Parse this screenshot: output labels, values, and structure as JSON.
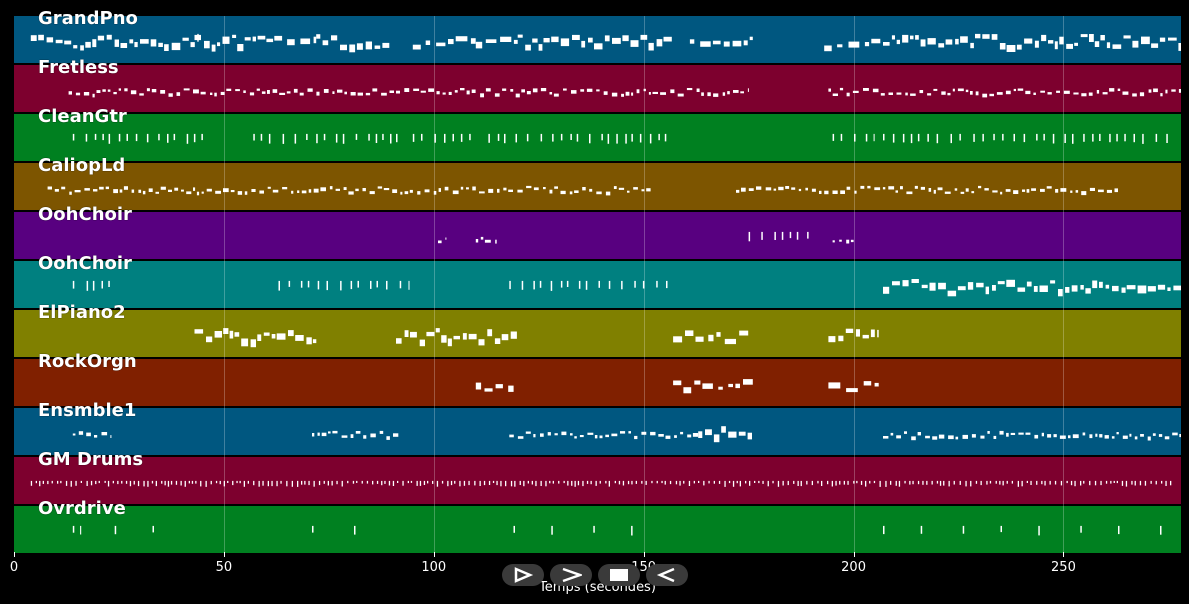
{
  "tracks": [
    {
      "name": "GrandPno",
      "color": "#005780",
      "segments": [
        [
          4,
          44,
          "h"
        ],
        [
          43,
          62,
          "h"
        ],
        [
          62,
          72,
          "m"
        ],
        [
          72,
          90,
          "h"
        ],
        [
          95,
          110,
          "m"
        ],
        [
          110,
          120,
          "m"
        ],
        [
          120,
          157,
          "h"
        ],
        [
          161,
          176,
          "m"
        ],
        [
          193,
          207,
          "m"
        ],
        [
          207,
          278,
          "h"
        ]
      ]
    },
    {
      "name": "Fretless",
      "color": "#7d002e",
      "segments": [
        [
          13,
          175,
          "l"
        ],
        [
          194,
          278,
          "l"
        ]
      ]
    },
    {
      "name": "CleanGtr",
      "color": "#008020",
      "segments": [
        [
          14,
          45,
          "s"
        ],
        [
          57,
          70,
          "s"
        ],
        [
          72,
          92,
          "s"
        ],
        [
          95,
          110,
          "s"
        ],
        [
          113,
          157,
          "s"
        ],
        [
          195,
          205,
          "s"
        ],
        [
          207,
          275,
          "s"
        ]
      ]
    },
    {
      "name": "CaliopLd",
      "color": "#7d5500",
      "segments": [
        [
          8,
          152,
          "l"
        ],
        [
          172,
          263,
          "l"
        ]
      ]
    },
    {
      "name": "OohChoir",
      "color": "#580080",
      "segments": [
        [
          101,
          103,
          "l"
        ],
        [
          110,
          115,
          "l"
        ],
        [
          175,
          190,
          "s"
        ],
        [
          195,
          200,
          "l"
        ]
      ]
    },
    {
      "name": "OohChoir",
      "color": "#008080",
      "segments": [
        [
          14,
          24,
          "s"
        ],
        [
          63,
          94,
          "s"
        ],
        [
          118,
          157,
          "s"
        ],
        [
          207,
          278,
          "h"
        ]
      ]
    },
    {
      "name": "ElPiano2",
      "color": "#808000",
      "segments": [
        [
          43,
          72,
          "h"
        ],
        [
          91,
          120,
          "h"
        ],
        [
          157,
          176,
          "m"
        ],
        [
          194,
          206,
          "h"
        ]
      ]
    },
    {
      "name": "RockOrgn",
      "color": "#802000",
      "segments": [
        [
          110,
          119,
          "m"
        ],
        [
          157,
          176,
          "m"
        ],
        [
          194,
          206,
          "m"
        ]
      ]
    },
    {
      "name": "Ensmble1",
      "color": "#005780",
      "segments": [
        [
          14,
          23,
          "l"
        ],
        [
          71,
          92,
          "l"
        ],
        [
          118,
          163,
          "l"
        ],
        [
          163,
          176,
          "h"
        ],
        [
          207,
          278,
          "l"
        ]
      ]
    },
    {
      "name": "GM Drums",
      "color": "#7d002e",
      "segments": [
        [
          4,
          276,
          "d"
        ]
      ]
    },
    {
      "name": "Ovrdrive",
      "color": "#008020",
      "segments": [
        [
          14,
          16,
          "s"
        ],
        [
          24,
          25,
          "s"
        ],
        [
          33,
          34,
          "s"
        ],
        [
          71,
          72,
          "s"
        ],
        [
          81,
          82,
          "s"
        ],
        [
          119,
          120,
          "s"
        ],
        [
          128,
          129,
          "s"
        ],
        [
          138,
          139,
          "s"
        ],
        [
          147,
          148,
          "s"
        ],
        [
          207,
          208,
          "s"
        ],
        [
          216,
          217,
          "s"
        ],
        [
          226,
          227,
          "s"
        ],
        [
          235,
          236,
          "s"
        ],
        [
          244,
          245,
          "s"
        ],
        [
          254,
          255,
          "s"
        ],
        [
          263,
          264,
          "s"
        ],
        [
          273,
          274,
          "s"
        ]
      ]
    }
  ],
  "axis": {
    "xmax": 278,
    "ticks": [
      0,
      50,
      100,
      150,
      200,
      250
    ],
    "label": "Temps (secondes)"
  },
  "controls": [
    {
      "name": "play-from-start-icon"
    },
    {
      "name": "play-icon"
    },
    {
      "name": "stop-icon"
    },
    {
      "name": "rewind-icon"
    }
  ]
}
